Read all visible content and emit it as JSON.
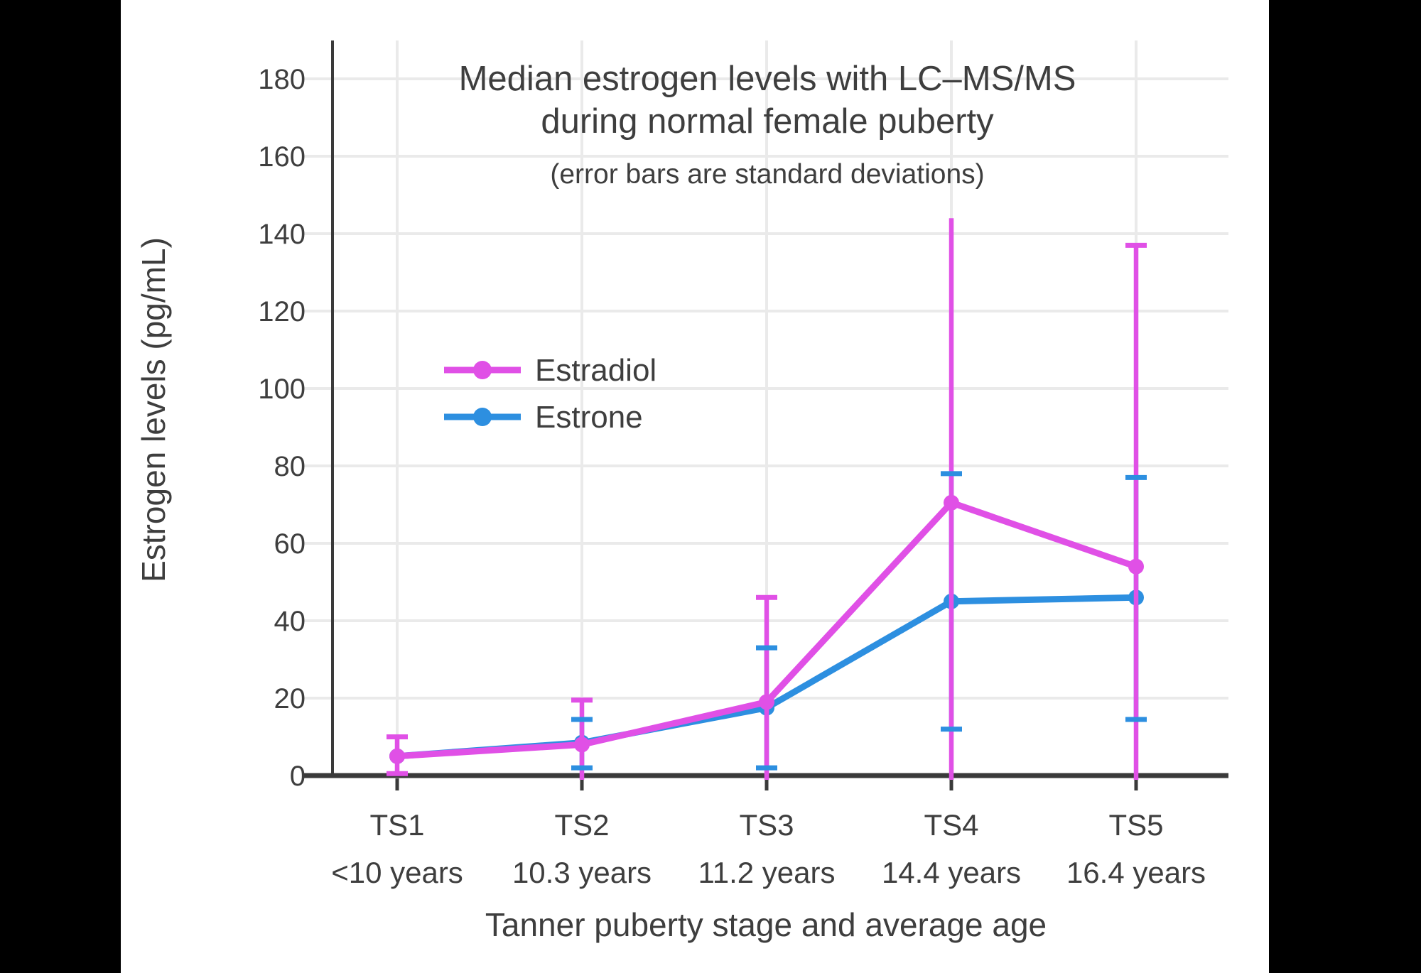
{
  "page": {
    "background_color": "#000000",
    "canvas_color": "#ffffff"
  },
  "chart_data": {
    "type": "line",
    "title": "Median estrogen levels with LC–MS/MS",
    "title_line2": "during normal female puberty",
    "subtitle": "(error bars are standard deviations)",
    "xlabel": "Tanner puberty stage and average age",
    "ylabel": "Estrogen levels (pg/mL)",
    "ylim": [
      0,
      190
    ],
    "yticks": [
      0,
      20,
      40,
      60,
      80,
      100,
      120,
      140,
      160,
      180
    ],
    "grid": true,
    "legend_position": "inside-upper-left",
    "categories": [
      "TS1",
      "TS2",
      "TS3",
      "TS4",
      "TS5"
    ],
    "category_ages": [
      "<10 years",
      "10.3 years",
      "11.2 years",
      "14.4 years",
      "16.4 years"
    ],
    "series": [
      {
        "name": "Estradiol",
        "color": "#e050e6",
        "values": [
          5,
          8,
          19,
          70.5,
          54
        ],
        "error_bars": [
          {
            "high": 10,
            "low": 0.5,
            "cap_high": true,
            "cap_low": true,
            "clip_low": false
          },
          {
            "high": 19.5,
            "low": null,
            "cap_high": true,
            "cap_low": false,
            "clip_low": true
          },
          {
            "high": 46,
            "low": null,
            "cap_high": true,
            "cap_low": false,
            "clip_low": true
          },
          {
            "high": 144,
            "low": null,
            "cap_high": false,
            "cap_low": false,
            "clip_low": true
          },
          {
            "high": 137,
            "low": null,
            "cap_high": true,
            "cap_low": false,
            "clip_low": true
          }
        ]
      },
      {
        "name": "Estrone",
        "color": "#2d8fe0",
        "values": [
          5,
          8.5,
          17.5,
          45,
          46
        ],
        "error_bars": [
          null,
          {
            "high": 14.5,
            "low": 2,
            "cap_high": true,
            "cap_low": true,
            "clip_low": false
          },
          {
            "high": 33,
            "low": 2,
            "cap_high": true,
            "cap_low": true,
            "clip_low": false
          },
          {
            "high": 78,
            "low": 12,
            "cap_high": true,
            "cap_low": true,
            "clip_low": false
          },
          {
            "high": 77,
            "low": 14.5,
            "cap_high": true,
            "cap_low": true,
            "clip_low": false
          }
        ]
      }
    ]
  }
}
